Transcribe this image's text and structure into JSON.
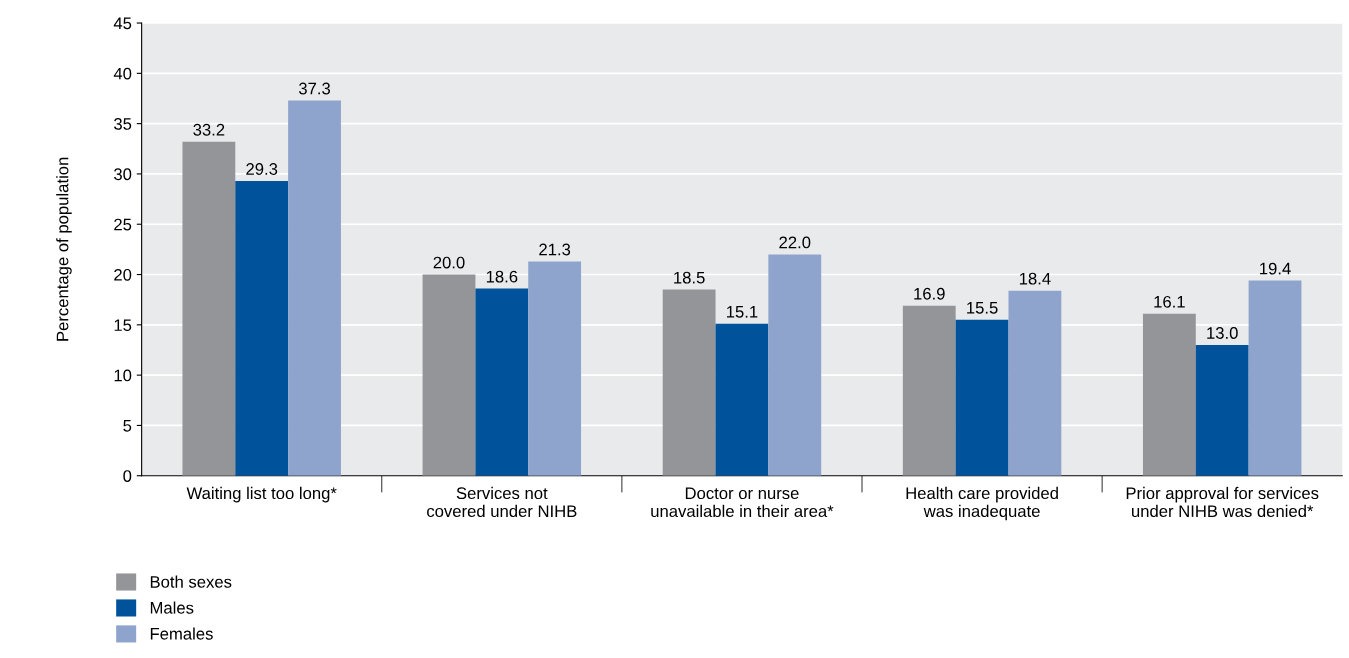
{
  "chart_data": {
    "type": "bar",
    "ylabel": "Percentage of population",
    "categories": [
      "Waiting list too long*",
      "Services not\ncovered under NIHB",
      "Doctor or nurse\nunavailable in their area*",
      "Health care provided\nwas inadequate",
      "Prior approval for services\nunder NIHB was denied*"
    ],
    "series": [
      {
        "name": "Both sexes",
        "color": "#939598",
        "values": [
          33.2,
          20,
          18.5,
          16.9,
          16.1
        ],
        "value_labels": [
          "33.2",
          "20.0",
          "18.5",
          "16.9",
          "16.1"
        ]
      },
      {
        "name": "Males",
        "color": "#00529b",
        "values": [
          29.3,
          18.6,
          15.1,
          15.5,
          13
        ],
        "value_labels": [
          "29.3",
          "18.6",
          "15.1",
          "15.5",
          "13.0"
        ]
      },
      {
        "name": "Females",
        "color": "#8fa4cc",
        "values": [
          37.3,
          21.3,
          22,
          18.4,
          19.4
        ],
        "value_labels": [
          "37.3",
          "21.3",
          "22.0",
          "18.4",
          "19.4"
        ]
      }
    ],
    "ylim": [
      0,
      45
    ],
    "yticks": [
      0,
      5,
      10,
      15,
      20,
      25,
      30,
      35,
      40,
      45
    ],
    "grid": "y",
    "legend": "bottom left"
  }
}
